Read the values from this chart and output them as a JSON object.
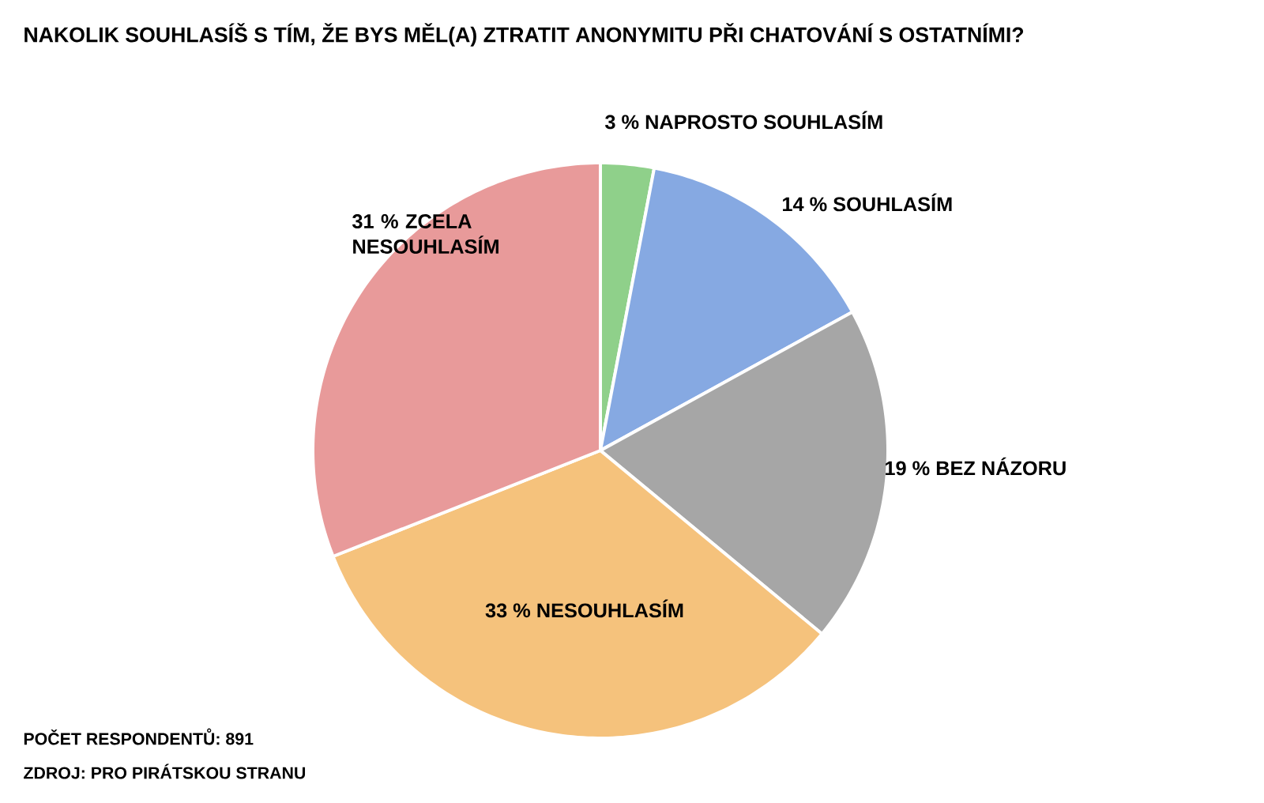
{
  "chart_data": {
    "type": "pie",
    "title": "NAKOLIK SOUHLASÍŠ S TÍM, ŽE BYS MĚL(A) ZTRATIT ANONYMITU PŘI CHATOVÁNÍ S OSTATNÍMI?",
    "categories": [
      "NAPROSTO SOUHLASÍM",
      "SOUHLASÍM",
      "BEZ NÁZORU",
      "NESOUHLASÍM",
      "ZCELA NESOUHLASÍM"
    ],
    "values": [
      3,
      14,
      19,
      33,
      31
    ],
    "value_labels": [
      "3 %",
      "14 %",
      "19 %",
      "33 %",
      "31 %"
    ],
    "colors": [
      "#8fd08a",
      "#86a9e2",
      "#a6a6a6",
      "#f5c27c",
      "#e89a9a"
    ],
    "annotations": [
      "POČET RESPONDENTŮ: 891",
      "ZDROJ: PRO PIRÁTSKOU STRANU"
    ]
  }
}
